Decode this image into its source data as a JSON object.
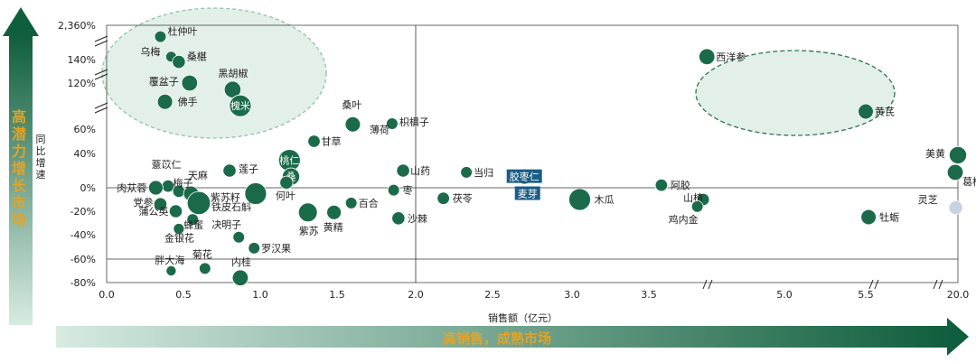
{
  "side_arrow_label": "高潜力增长市场",
  "bottom_arrow_label": "高销售，成熟市场",
  "colors": {
    "bubble": "#1b6b4a",
    "bubble_faded": "#c9d2df",
    "label_box": "#1a5d86",
    "arrow_dark": "#0d5a3a",
    "arrow_light": "#cfe6dc",
    "ellipse_fill": "#e3efe9",
    "accent_text": "#e3a325"
  },
  "chart_data": {
    "type": "scatter",
    "xlabel": "销售额（亿元）",
    "ylabel": "同比增速",
    "x_ticks": [
      "0.0",
      "0.5",
      "1.0",
      "1.5",
      "2.0",
      "2.5",
      "3.0",
      "3.5",
      "5.0",
      "5.5",
      "20.0"
    ],
    "y_ticks": [
      "2,360%",
      "140%",
      "120%",
      "60%",
      "40%",
      "0%",
      "-20%",
      "-40%",
      "-60%",
      "-80%"
    ],
    "axis_breaks": {
      "x": [
        3.8,
        5.4,
        6.5
      ],
      "y": [
        "between 60% and 120%"
      ]
    },
    "grid": true,
    "points": [
      {
        "name": "杜仲叶",
        "x": 0.35,
        "y": 180,
        "size": 0.3
      },
      {
        "name": "乌梅",
        "x": 0.42,
        "y": 145,
        "size": 0.25
      },
      {
        "name": "桑椹",
        "x": 0.47,
        "y": 138,
        "size": 0.4
      },
      {
        "name": "覆盆子",
        "x": 0.54,
        "y": 120,
        "size": 0.6
      },
      {
        "name": "黑胡椒",
        "x": 0.82,
        "y": 112,
        "size": 0.65
      },
      {
        "name": "佛手",
        "x": 0.38,
        "y": 97,
        "size": 0.55
      },
      {
        "name": "槐米",
        "x": 0.87,
        "y": 92,
        "size": 1.0,
        "inside_label": true
      },
      {
        "name": "桑叶",
        "x": 1.6,
        "y": 67,
        "size": 0.55
      },
      {
        "name": "枳椇子",
        "x": 1.85,
        "y": 68,
        "size": 0.3
      },
      {
        "name": "薄荷",
        "x": 1.66,
        "y": 62
      },
      {
        "name": "甘草",
        "x": 1.35,
        "y": 50,
        "size": 0.35
      },
      {
        "name": "桃仁",
        "x": 1.19,
        "y": 32,
        "size": 1.0,
        "inside_label": true
      },
      {
        "name": "山药",
        "x": 1.92,
        "y": 20,
        "size": 0.4
      },
      {
        "name": "当归",
        "x": 2.33,
        "y": 18,
        "size": 0.3
      },
      {
        "name": "胶枣仁",
        "x": 2.7,
        "y": 13,
        "size": 0.55,
        "boxed_label": true
      },
      {
        "name": "薏苡仁",
        "x": 0.4,
        "y": 2,
        "size": 0.35
      },
      {
        "name": "天麻",
        "x": 0.47,
        "y": -3,
        "size": 0.35
      },
      {
        "name": "莲子",
        "x": 0.8,
        "y": 20,
        "size": 0.4
      },
      {
        "name": "桑",
        "x": 1.2,
        "y": 13,
        "size": 0.7,
        "inside_label": true
      },
      {
        "name": "何叶",
        "x": 1.17,
        "y": 6,
        "size": 0.4
      },
      {
        "name": "肉苁蓉",
        "x": 0.32,
        "y": 0,
        "size": 0.5
      },
      {
        "name": "梅子",
        "x": 0.55,
        "y": -5,
        "size": 0.55
      },
      {
        "name": "紫苏籽",
        "x": 0.97,
        "y": -5,
        "size": 1.0
      },
      {
        "name": "枣",
        "x": 1.86,
        "y": -2,
        "size": 0.3
      },
      {
        "name": "党参",
        "x": 0.35,
        "y": -14,
        "size": 0.4
      },
      {
        "name": "蒲公英",
        "x": 0.45,
        "y": -20,
        "size": 0.4
      },
      {
        "name": "铁皮石斛",
        "x": 0.6,
        "y": -13,
        "size": 1.1
      },
      {
        "name": "蜂蜜",
        "x": 0.56,
        "y": -27,
        "size": 0.3
      },
      {
        "name": "百合",
        "x": 1.59,
        "y": -13,
        "size": 0.3
      },
      {
        "name": "茯苓",
        "x": 2.18,
        "y": -9,
        "size": 0.35
      },
      {
        "name": "麦芽",
        "x": 2.72,
        "y": -5,
        "size": 0.35,
        "boxed_label": true
      },
      {
        "name": "木瓜",
        "x": 3.05,
        "y": -10,
        "size": 1.0
      },
      {
        "name": "紫苏",
        "x": 1.31,
        "y": -21,
        "size": 0.8
      },
      {
        "name": "黄精",
        "x": 1.48,
        "y": -21,
        "size": 0.5
      },
      {
        "name": "沙棘",
        "x": 1.89,
        "y": -26,
        "size": 0.4
      },
      {
        "name": "金银花",
        "x": 0.47,
        "y": -35,
        "size": 0.25
      },
      {
        "name": "决明子",
        "x": 0.86,
        "y": -42,
        "size": 0.3
      },
      {
        "name": "罗汉果",
        "x": 0.96,
        "y": -51,
        "size": 0.3
      },
      {
        "name": "胖大海",
        "x": 0.42,
        "y": -70,
        "size": 0.2
      },
      {
        "name": "菊花",
        "x": 0.64,
        "y": -68,
        "size": 0.3
      },
      {
        "name": "内桂",
        "x": 0.87,
        "y": -76,
        "size": 0.6
      },
      {
        "name": "阿胶",
        "x": 3.58,
        "y": 3,
        "size": 0.35
      },
      {
        "name": "山楂",
        "x": 3.9,
        "y": -10,
        "size": 0.35
      },
      {
        "name": "鸡内金",
        "x": 3.82,
        "y": -16,
        "size": 0.3
      },
      {
        "name": "西洋参",
        "x": 3.95,
        "y": 145,
        "size": 0.6
      },
      {
        "name": "黄芪",
        "x": 5.5,
        "y": 85,
        "size": 0.55
      },
      {
        "name": "美黄",
        "x": 20.0,
        "y": 38,
        "size": 0.7
      },
      {
        "name": "葛根",
        "x": 19.0,
        "y": 18,
        "size": 0.6
      },
      {
        "name": "灵芝",
        "x": 19.2,
        "y": -17,
        "size": 0.45,
        "faded": true
      },
      {
        "name": "牡蛎",
        "x": 5.55,
        "y": -25,
        "size": 0.55
      }
    ]
  }
}
